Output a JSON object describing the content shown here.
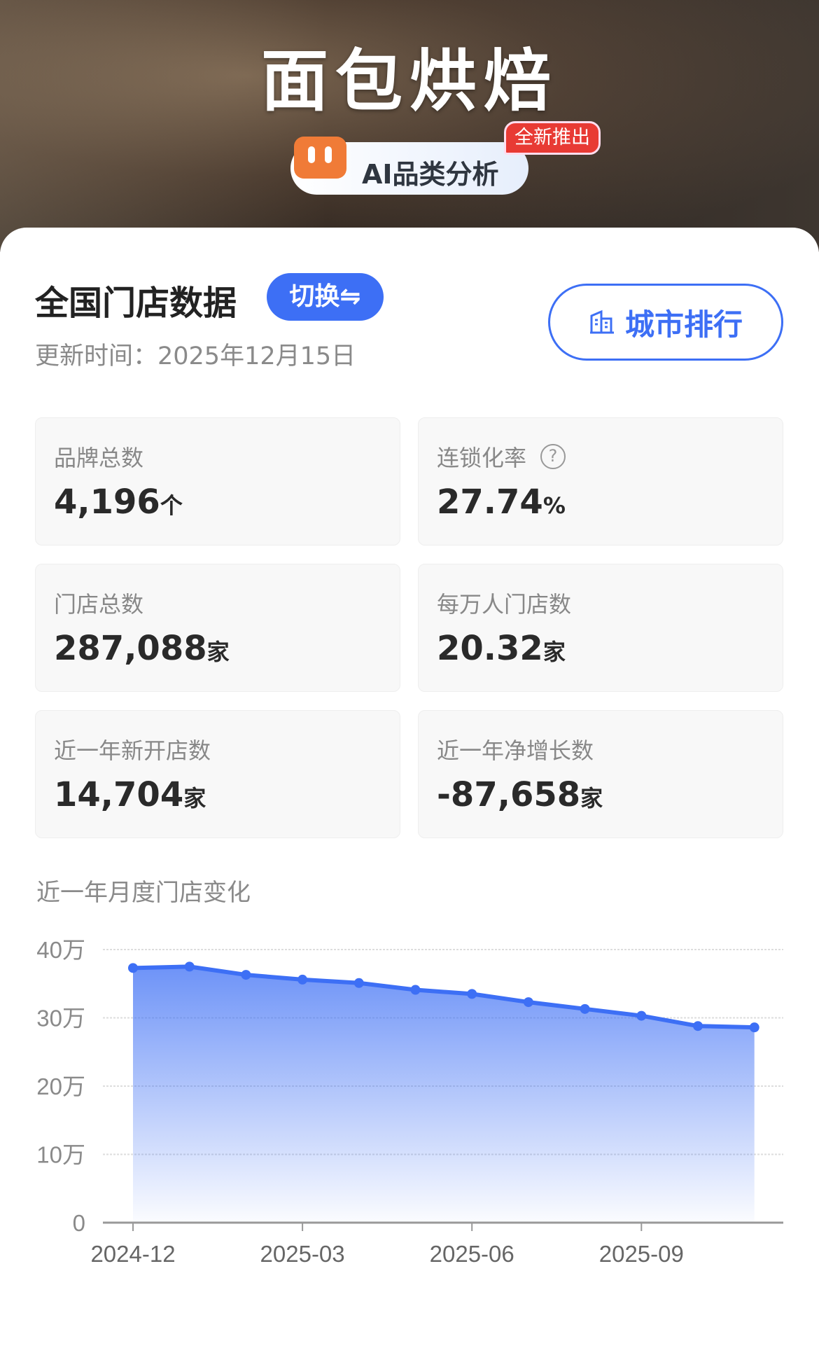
{
  "hero": {
    "title": "面包烘焙",
    "ai_label": "AI品类分析",
    "new_badge": "全新推出"
  },
  "header": {
    "title": "全国门店数据",
    "switch_label": "切换⇋",
    "update_time": "更新时间：2025年12月15日",
    "city_rank_label": "城市排行"
  },
  "stats": [
    {
      "label": "品牌总数",
      "value": "4,196",
      "unit": "个"
    },
    {
      "label": "连锁化率",
      "value": "27.74",
      "unit": "%",
      "help": "?"
    },
    {
      "label": "门店总数",
      "value": "287,088",
      "unit": "家"
    },
    {
      "label": "每万人门店数",
      "value": "20.32",
      "unit": "家"
    },
    {
      "label": "近一年新开店数",
      "value": "14,704",
      "unit": "家"
    },
    {
      "label": "近一年净增长数",
      "value": "-87,658",
      "unit": "家"
    }
  ],
  "section_title": "近一年月度门店变化",
  "colors": {
    "accent": "#3d6ff5",
    "badge_red": "#e83a34"
  },
  "chart_data": {
    "type": "area",
    "x": [
      "2024-12",
      "2025-01",
      "2025-02",
      "2025-03",
      "2025-04",
      "2025-05",
      "2025-06",
      "2025-07",
      "2025-08",
      "2025-09",
      "2025-10",
      "2025-11"
    ],
    "values": [
      373000,
      375000,
      363000,
      356000,
      351000,
      341000,
      335000,
      323000,
      313000,
      303000,
      288000,
      286000
    ],
    "x_tick_labels": [
      "2024-12",
      "2025-03",
      "2025-06",
      "2025-09"
    ],
    "y_tick_labels": [
      "0",
      "10万",
      "20万",
      "30万",
      "40万"
    ],
    "y_ticks": [
      0,
      100000,
      200000,
      300000,
      400000
    ],
    "ylim": [
      0,
      400000
    ],
    "grid": true
  }
}
